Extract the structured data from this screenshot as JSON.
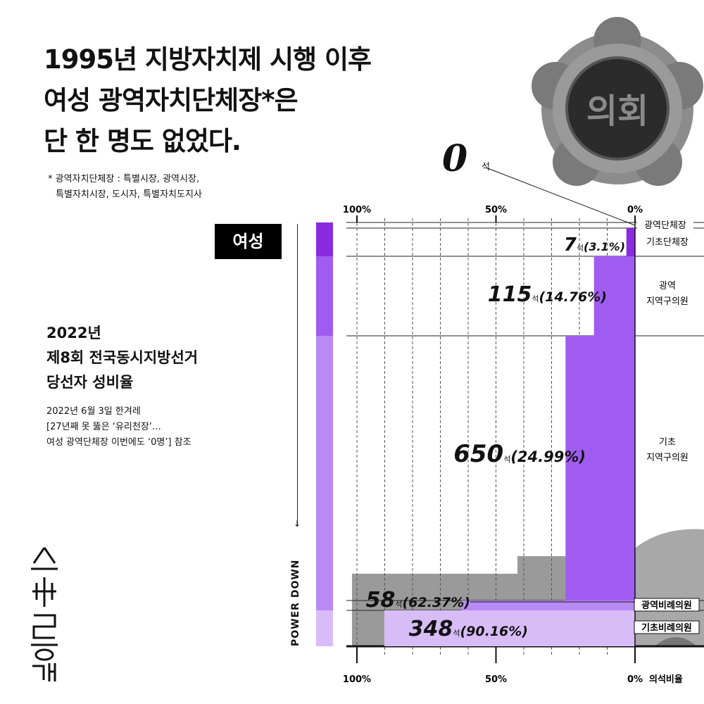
{
  "title": {
    "lines": [
      "1995년 지방자치제 시행 이후",
      "여성 광역자치단체장*은",
      "단 한 명도 없었다."
    ]
  },
  "footnote": {
    "lines": [
      "* 광역자치단체장 : 특별시장, 광역시장,",
      "특별자치시장, 도시자, 특별자치도지사"
    ]
  },
  "badge": "여성",
  "subtitle": {
    "lines": [
      "2022년",
      "제8회 전국동시지방선거",
      "당선자 성비율"
    ]
  },
  "source": {
    "lines": [
      "2022년 6월 3일 한겨레",
      "[27년째 못 뚫은 ‘유리천장’…",
      "여성 광역단체장 이번에도 ‘0명’] 참조"
    ]
  },
  "power_label": "POWER DOWN",
  "logo_text": "소수통계",
  "seal_text": "의회",
  "zero_callout": {
    "number": "0",
    "unit": "석"
  },
  "seat_unit": "석",
  "axis": {
    "top_ticks": [
      "100%",
      "50%",
      "0%"
    ],
    "bottom_ticks": [
      "100%",
      "50%",
      "0%"
    ],
    "bottom_label": "의석비율"
  },
  "colors": {
    "purple_dark": "#8A2BE2",
    "purple_mid": "#A05CF0",
    "purple_light": "#B88AF5",
    "purple_pale": "#D8BCF8",
    "gray_building": "#9a9a9a"
  },
  "chart_data": {
    "type": "bar",
    "orientation": "horizontal",
    "direction": "right-to-left",
    "xlim": [
      0,
      100
    ],
    "xlabel": "의석비율",
    "categories": [
      "광역단체장",
      "기초단체장",
      "광역 지역구의원",
      "기초 지역구의원",
      "광역비례의원",
      "기초비례의원"
    ],
    "series": [
      {
        "name": "여성",
        "seats": [
          0,
          7,
          115,
          650,
          58,
          348
        ],
        "values": [
          0,
          3.1,
          14.76,
          24.99,
          62.37,
          90.16
        ]
      }
    ],
    "labels": [
      {
        "number": "0",
        "pct": ""
      },
      {
        "number": "7",
        "pct": "(3.1%)"
      },
      {
        "number": "115",
        "pct": "(14.76%)"
      },
      {
        "number": "650",
        "pct": "(24.99%)"
      },
      {
        "number": "58",
        "pct": "(62.37%)"
      },
      {
        "number": "348",
        "pct": "(90.16%)"
      }
    ],
    "category_labels": [
      [
        "광역단체장"
      ],
      [
        "기초단체장"
      ],
      [
        "광역",
        "지역구의원"
      ],
      [
        "기초",
        "지역구의원"
      ],
      [
        "광역비례의원"
      ],
      [
        "기초비례의원"
      ]
    ]
  }
}
